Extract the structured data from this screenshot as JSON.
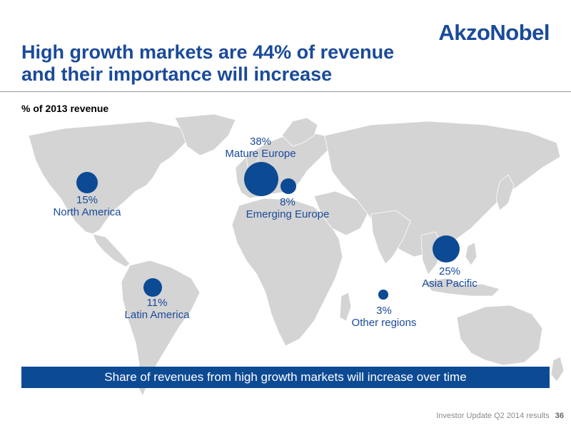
{
  "header": {
    "logo": "AkzoNobel",
    "title_line1": "High growth markets are 44% of revenue",
    "title_line2": "and their importance will increase"
  },
  "subtitle": "% of 2013 revenue",
  "colors": {
    "brand": "#1a4a9a",
    "banner": "#0d4a94",
    "land": "#d4d4d4"
  },
  "regions": [
    {
      "name": "North America",
      "percent": "15%",
      "value": 15
    },
    {
      "name": "Mature Europe",
      "percent": "38%",
      "value": 38
    },
    {
      "name": "Emerging Europe",
      "percent": "8%",
      "value": 8
    },
    {
      "name": "Asia Pacific",
      "percent": "25%",
      "value": 25
    },
    {
      "name": "Latin America",
      "percent": "11%",
      "value": 11
    },
    {
      "name": "Other regions",
      "percent": "3%",
      "value": 3
    }
  ],
  "banner": "Share of revenues from high growth markets will increase over time",
  "footer": {
    "text": "Investor Update Q2 2014 results",
    "page": "36"
  }
}
